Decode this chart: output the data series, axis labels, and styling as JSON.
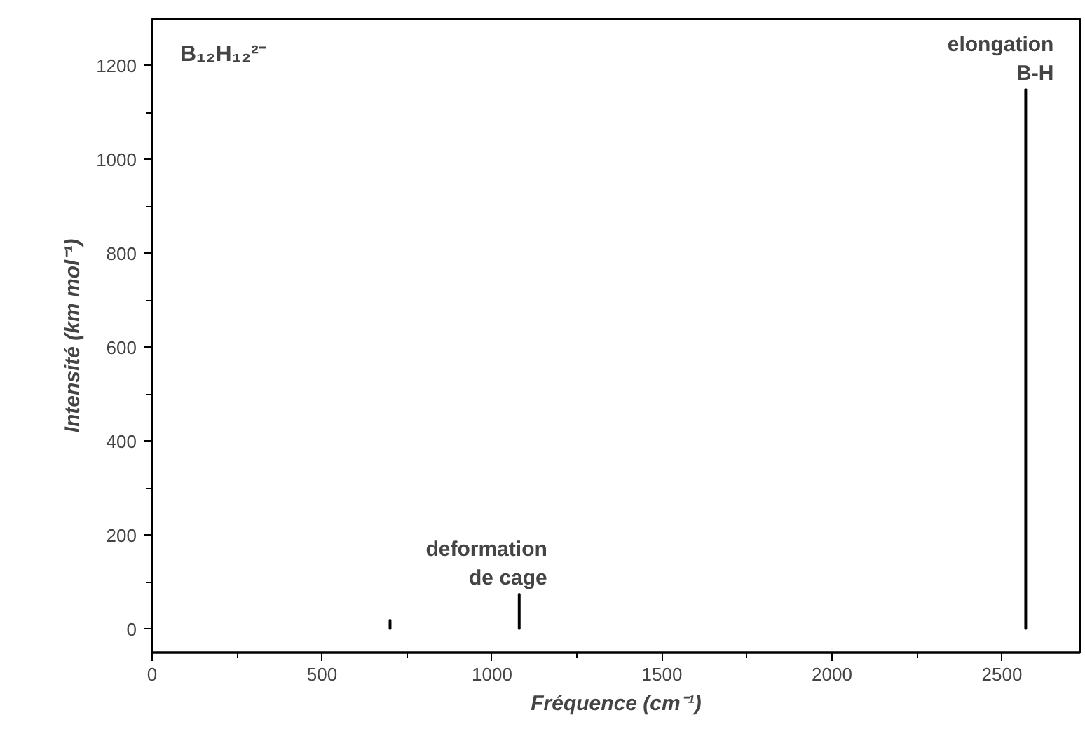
{
  "chart_data": {
    "type": "bar",
    "x": [
      700,
      1080,
      2570
    ],
    "values": [
      20,
      75,
      1150
    ],
    "color": "#000000",
    "xlim": [
      0,
      2730
    ],
    "ylim": [
      -50,
      1300
    ],
    "xticks": [
      0,
      500,
      1000,
      1500,
      2000,
      2500
    ],
    "yticks": [
      0,
      200,
      400,
      600,
      800,
      1000,
      1200
    ],
    "xlabel": "Fréquence (cm⁻¹)",
    "ylabel": "Intensité (km mol⁻¹)",
    "grid": false,
    "annotations": [
      "B₁₂H₁₂²⁻",
      {
        "text": "deformation\nde cage",
        "x": 1080,
        "y": 75
      },
      {
        "text": "elongation\nB-H",
        "x": 2570,
        "y": 1150
      }
    ]
  }
}
